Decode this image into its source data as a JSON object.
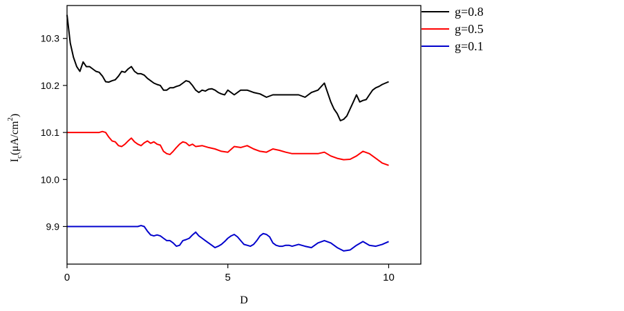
{
  "chart_data": {
    "type": "line",
    "title": "",
    "xlabel": "D",
    "ylabel": "I_c(μA/cm^2)",
    "ylabel_parts": {
      "main": "I",
      "sub": "c",
      "unit": "(μA/cm",
      "sup": "2",
      "close": ")"
    },
    "xlim": [
      0,
      11
    ],
    "ylim": [
      9.82,
      10.37
    ],
    "xticks": [
      0,
      5,
      10
    ],
    "xtick_labels": [
      "0",
      "5",
      "10"
    ],
    "yticks": [
      9.9,
      10.0,
      10.1,
      10.2,
      10.3
    ],
    "ytick_labels": [
      "9.9",
      "10.0",
      "10.1",
      "10.2",
      "10.3"
    ],
    "grid": false,
    "legend_position": "top-right",
    "series": [
      {
        "name": "g=0.8",
        "color": "#000000",
        "x": [
          0,
          0.1,
          0.2,
          0.3,
          0.4,
          0.5,
          0.6,
          0.7,
          0.8,
          0.9,
          1.0,
          1.1,
          1.2,
          1.3,
          1.4,
          1.5,
          1.6,
          1.7,
          1.8,
          1.9,
          2.0,
          2.1,
          2.2,
          2.3,
          2.4,
          2.5,
          2.6,
          2.7,
          2.8,
          2.9,
          3.0,
          3.1,
          3.2,
          3.3,
          3.4,
          3.5,
          3.6,
          3.7,
          3.8,
          3.9,
          4.0,
          4.1,
          4.2,
          4.3,
          4.4,
          4.5,
          4.6,
          4.7,
          4.8,
          4.9,
          5.0,
          5.2,
          5.4,
          5.6,
          5.8,
          6.0,
          6.2,
          6.4,
          6.6,
          6.8,
          7.0,
          7.2,
          7.4,
          7.6,
          7.8,
          8.0,
          8.1,
          8.2,
          8.3,
          8.4,
          8.5,
          8.6,
          8.7,
          8.8,
          8.9,
          9.0,
          9.1,
          9.2,
          9.3,
          9.4,
          9.5,
          9.6,
          9.7,
          9.8,
          9.9,
          10.0
        ],
        "values": [
          10.35,
          10.29,
          10.26,
          10.24,
          10.23,
          10.25,
          10.24,
          10.24,
          10.235,
          10.23,
          10.228,
          10.22,
          10.208,
          10.207,
          10.21,
          10.212,
          10.22,
          10.23,
          10.228,
          10.235,
          10.24,
          10.23,
          10.225,
          10.225,
          10.222,
          10.215,
          10.21,
          10.205,
          10.202,
          10.2,
          10.19,
          10.19,
          10.195,
          10.195,
          10.198,
          10.2,
          10.205,
          10.21,
          10.208,
          10.2,
          10.19,
          10.185,
          10.19,
          10.188,
          10.192,
          10.193,
          10.19,
          10.185,
          10.182,
          10.18,
          10.19,
          10.18,
          10.19,
          10.19,
          10.185,
          10.182,
          10.175,
          10.18,
          10.18,
          10.18,
          10.18,
          10.18,
          10.175,
          10.185,
          10.19,
          10.205,
          10.185,
          10.165,
          10.15,
          10.14,
          10.125,
          10.128,
          10.135,
          10.15,
          10.165,
          10.18,
          10.165,
          10.168,
          10.17,
          10.18,
          10.19,
          10.195,
          10.198,
          10.202,
          10.205,
          10.208
        ]
      },
      {
        "name": "g=0.5",
        "color": "#ff0000",
        "x": [
          0,
          0.5,
          1.0,
          1.1,
          1.2,
          1.3,
          1.4,
          1.5,
          1.6,
          1.7,
          1.8,
          1.9,
          2.0,
          2.1,
          2.2,
          2.3,
          2.4,
          2.5,
          2.6,
          2.7,
          2.8,
          2.9,
          3.0,
          3.1,
          3.2,
          3.3,
          3.4,
          3.5,
          3.6,
          3.7,
          3.8,
          3.9,
          4.0,
          4.2,
          4.4,
          4.6,
          4.8,
          5.0,
          5.2,
          5.4,
          5.6,
          5.8,
          6.0,
          6.2,
          6.4,
          6.6,
          6.8,
          7.0,
          7.2,
          7.4,
          7.6,
          7.8,
          8.0,
          8.2,
          8.4,
          8.6,
          8.8,
          9.0,
          9.2,
          9.4,
          9.6,
          9.8,
          10.0
        ],
        "values": [
          10.1,
          10.1,
          10.1,
          10.102,
          10.1,
          10.09,
          10.082,
          10.08,
          10.072,
          10.07,
          10.075,
          10.082,
          10.088,
          10.08,
          10.075,
          10.072,
          10.078,
          10.082,
          10.077,
          10.08,
          10.075,
          10.073,
          10.06,
          10.055,
          10.053,
          10.06,
          10.068,
          10.075,
          10.08,
          10.078,
          10.072,
          10.075,
          10.07,
          10.072,
          10.068,
          10.065,
          10.06,
          10.058,
          10.07,
          10.068,
          10.072,
          10.065,
          10.06,
          10.058,
          10.065,
          10.062,
          10.058,
          10.055,
          10.055,
          10.055,
          10.055,
          10.055,
          10.058,
          10.05,
          10.045,
          10.042,
          10.043,
          10.05,
          10.06,
          10.055,
          10.045,
          10.035,
          10.03
        ]
      },
      {
        "name": "g=0.1",
        "color": "#0000cc",
        "x": [
          0,
          0.5,
          1.0,
          1.5,
          2.0,
          2.2,
          2.3,
          2.4,
          2.5,
          2.6,
          2.7,
          2.8,
          2.9,
          3.0,
          3.1,
          3.2,
          3.3,
          3.4,
          3.5,
          3.6,
          3.7,
          3.8,
          3.9,
          4.0,
          4.1,
          4.2,
          4.3,
          4.4,
          4.5,
          4.6,
          4.7,
          4.8,
          4.9,
          5.0,
          5.1,
          5.2,
          5.3,
          5.4,
          5.5,
          5.6,
          5.7,
          5.8,
          5.9,
          6.0,
          6.1,
          6.2,
          6.3,
          6.4,
          6.5,
          6.6,
          6.7,
          6.8,
          6.9,
          7.0,
          7.2,
          7.4,
          7.6,
          7.8,
          8.0,
          8.2,
          8.4,
          8.6,
          8.8,
          9.0,
          9.2,
          9.4,
          9.6,
          9.8,
          10.0
        ],
        "values": [
          9.9,
          9.9,
          9.9,
          9.9,
          9.9,
          9.9,
          9.902,
          9.9,
          9.89,
          9.882,
          9.88,
          9.882,
          9.88,
          9.875,
          9.87,
          9.87,
          9.865,
          9.858,
          9.86,
          9.87,
          9.872,
          9.875,
          9.882,
          9.888,
          9.88,
          9.875,
          9.87,
          9.865,
          9.86,
          9.855,
          9.858,
          9.862,
          9.868,
          9.875,
          9.88,
          9.883,
          9.878,
          9.87,
          9.862,
          9.86,
          9.858,
          9.862,
          9.87,
          9.88,
          9.885,
          9.883,
          9.878,
          9.865,
          9.86,
          9.858,
          9.858,
          9.86,
          9.86,
          9.858,
          9.862,
          9.858,
          9.855,
          9.865,
          9.87,
          9.865,
          9.855,
          9.848,
          9.85,
          9.86,
          9.868,
          9.86,
          9.858,
          9.862,
          9.868
        ]
      }
    ]
  }
}
